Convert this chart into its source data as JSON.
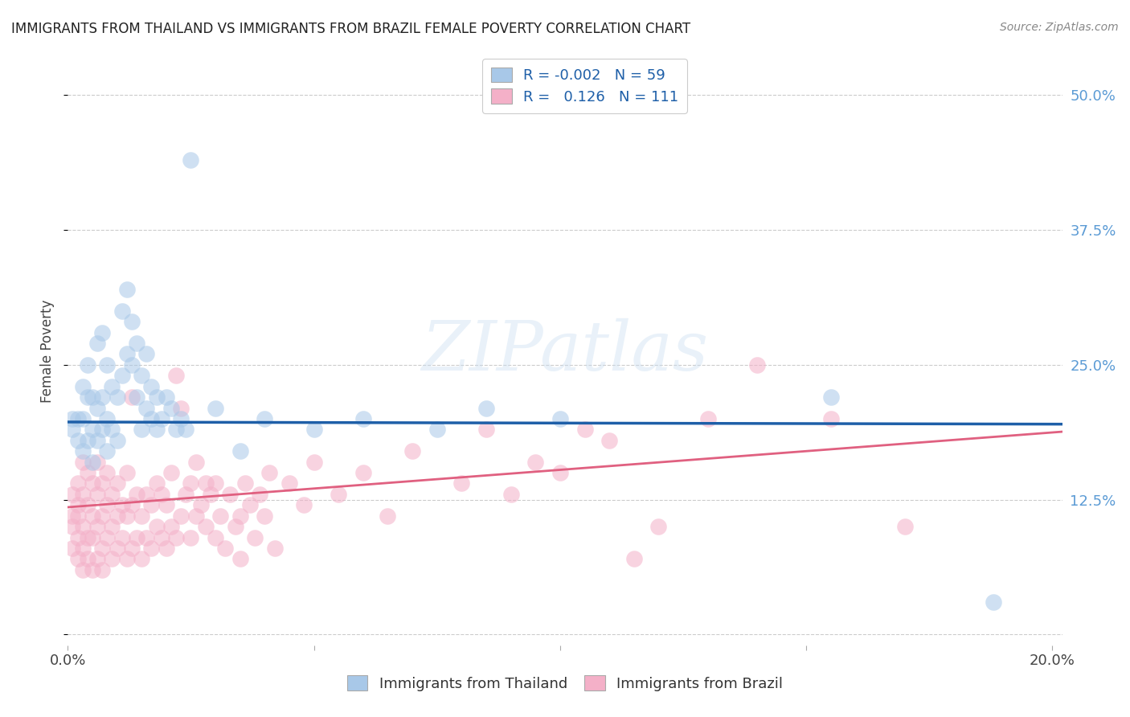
{
  "title": "IMMIGRANTS FROM THAILAND VS IMMIGRANTS FROM BRAZIL FEMALE POVERTY CORRELATION CHART",
  "source": "Source: ZipAtlas.com",
  "ylabel": "Female Poverty",
  "yticks": [
    0.0,
    0.125,
    0.25,
    0.375,
    0.5
  ],
  "ytick_labels": [
    "",
    "12.5%",
    "25.0%",
    "37.5%",
    "50.0%"
  ],
  "xlim": [
    0.0,
    0.202
  ],
  "ylim": [
    -0.01,
    0.535
  ],
  "thailand_color": "#a8c8e8",
  "brazil_color": "#f4b0c8",
  "thailand_line_color": "#1e5fa8",
  "brazil_line_color": "#e06080",
  "watermark": "ZIPatlas",
  "background_color": "#ffffff",
  "grid_color": "#cccccc",
  "title_color": "#222222",
  "right_tick_color": "#5b9bd5",
  "th_line_y0": 0.197,
  "th_line_y1": 0.195,
  "br_line_y0": 0.118,
  "br_line_y1": 0.188,
  "thailand_scatter": [
    [
      0.001,
      0.19
    ],
    [
      0.001,
      0.2
    ],
    [
      0.002,
      0.18
    ],
    [
      0.002,
      0.2
    ],
    [
      0.003,
      0.17
    ],
    [
      0.003,
      0.2
    ],
    [
      0.003,
      0.23
    ],
    [
      0.004,
      0.18
    ],
    [
      0.004,
      0.22
    ],
    [
      0.004,
      0.25
    ],
    [
      0.005,
      0.16
    ],
    [
      0.005,
      0.19
    ],
    [
      0.005,
      0.22
    ],
    [
      0.006,
      0.18
    ],
    [
      0.006,
      0.21
    ],
    [
      0.006,
      0.27
    ],
    [
      0.007,
      0.19
    ],
    [
      0.007,
      0.22
    ],
    [
      0.007,
      0.28
    ],
    [
      0.008,
      0.17
    ],
    [
      0.008,
      0.2
    ],
    [
      0.008,
      0.25
    ],
    [
      0.009,
      0.19
    ],
    [
      0.009,
      0.23
    ],
    [
      0.01,
      0.18
    ],
    [
      0.01,
      0.22
    ],
    [
      0.011,
      0.24
    ],
    [
      0.011,
      0.3
    ],
    [
      0.012,
      0.26
    ],
    [
      0.012,
      0.32
    ],
    [
      0.013,
      0.25
    ],
    [
      0.013,
      0.29
    ],
    [
      0.014,
      0.22
    ],
    [
      0.014,
      0.27
    ],
    [
      0.015,
      0.19
    ],
    [
      0.015,
      0.24
    ],
    [
      0.016,
      0.21
    ],
    [
      0.016,
      0.26
    ],
    [
      0.017,
      0.2
    ],
    [
      0.017,
      0.23
    ],
    [
      0.018,
      0.19
    ],
    [
      0.018,
      0.22
    ],
    [
      0.019,
      0.2
    ],
    [
      0.02,
      0.22
    ],
    [
      0.021,
      0.21
    ],
    [
      0.022,
      0.19
    ],
    [
      0.023,
      0.2
    ],
    [
      0.024,
      0.19
    ],
    [
      0.025,
      0.44
    ],
    [
      0.03,
      0.21
    ],
    [
      0.035,
      0.17
    ],
    [
      0.04,
      0.2
    ],
    [
      0.05,
      0.19
    ],
    [
      0.06,
      0.2
    ],
    [
      0.075,
      0.19
    ],
    [
      0.085,
      0.21
    ],
    [
      0.1,
      0.2
    ],
    [
      0.155,
      0.22
    ],
    [
      0.188,
      0.03
    ]
  ],
  "brazil_scatter": [
    [
      0.001,
      0.11
    ],
    [
      0.001,
      0.13
    ],
    [
      0.001,
      0.08
    ],
    [
      0.001,
      0.1
    ],
    [
      0.002,
      0.09
    ],
    [
      0.002,
      0.12
    ],
    [
      0.002,
      0.07
    ],
    [
      0.002,
      0.11
    ],
    [
      0.002,
      0.14
    ],
    [
      0.003,
      0.08
    ],
    [
      0.003,
      0.1
    ],
    [
      0.003,
      0.13
    ],
    [
      0.003,
      0.06
    ],
    [
      0.003,
      0.16
    ],
    [
      0.004,
      0.07
    ],
    [
      0.004,
      0.09
    ],
    [
      0.004,
      0.12
    ],
    [
      0.004,
      0.15
    ],
    [
      0.005,
      0.06
    ],
    [
      0.005,
      0.09
    ],
    [
      0.005,
      0.11
    ],
    [
      0.005,
      0.14
    ],
    [
      0.006,
      0.07
    ],
    [
      0.006,
      0.1
    ],
    [
      0.006,
      0.13
    ],
    [
      0.006,
      0.16
    ],
    [
      0.007,
      0.08
    ],
    [
      0.007,
      0.11
    ],
    [
      0.007,
      0.14
    ],
    [
      0.007,
      0.06
    ],
    [
      0.008,
      0.09
    ],
    [
      0.008,
      0.12
    ],
    [
      0.008,
      0.15
    ],
    [
      0.009,
      0.07
    ],
    [
      0.009,
      0.1
    ],
    [
      0.009,
      0.13
    ],
    [
      0.01,
      0.08
    ],
    [
      0.01,
      0.11
    ],
    [
      0.01,
      0.14
    ],
    [
      0.011,
      0.09
    ],
    [
      0.011,
      0.12
    ],
    [
      0.012,
      0.07
    ],
    [
      0.012,
      0.11
    ],
    [
      0.012,
      0.15
    ],
    [
      0.013,
      0.08
    ],
    [
      0.013,
      0.12
    ],
    [
      0.013,
      0.22
    ],
    [
      0.014,
      0.09
    ],
    [
      0.014,
      0.13
    ],
    [
      0.015,
      0.07
    ],
    [
      0.015,
      0.11
    ],
    [
      0.016,
      0.09
    ],
    [
      0.016,
      0.13
    ],
    [
      0.017,
      0.08
    ],
    [
      0.017,
      0.12
    ],
    [
      0.018,
      0.1
    ],
    [
      0.018,
      0.14
    ],
    [
      0.019,
      0.09
    ],
    [
      0.019,
      0.13
    ],
    [
      0.02,
      0.08
    ],
    [
      0.02,
      0.12
    ],
    [
      0.021,
      0.1
    ],
    [
      0.021,
      0.15
    ],
    [
      0.022,
      0.09
    ],
    [
      0.022,
      0.24
    ],
    [
      0.023,
      0.11
    ],
    [
      0.023,
      0.21
    ],
    [
      0.024,
      0.13
    ],
    [
      0.025,
      0.09
    ],
    [
      0.025,
      0.14
    ],
    [
      0.026,
      0.11
    ],
    [
      0.026,
      0.16
    ],
    [
      0.027,
      0.12
    ],
    [
      0.028,
      0.1
    ],
    [
      0.028,
      0.14
    ],
    [
      0.029,
      0.13
    ],
    [
      0.03,
      0.09
    ],
    [
      0.03,
      0.14
    ],
    [
      0.031,
      0.11
    ],
    [
      0.032,
      0.08
    ],
    [
      0.033,
      0.13
    ],
    [
      0.034,
      0.1
    ],
    [
      0.035,
      0.07
    ],
    [
      0.035,
      0.11
    ],
    [
      0.036,
      0.14
    ],
    [
      0.037,
      0.12
    ],
    [
      0.038,
      0.09
    ],
    [
      0.039,
      0.13
    ],
    [
      0.04,
      0.11
    ],
    [
      0.041,
      0.15
    ],
    [
      0.042,
      0.08
    ],
    [
      0.045,
      0.14
    ],
    [
      0.048,
      0.12
    ],
    [
      0.05,
      0.16
    ],
    [
      0.055,
      0.13
    ],
    [
      0.06,
      0.15
    ],
    [
      0.065,
      0.11
    ],
    [
      0.07,
      0.17
    ],
    [
      0.08,
      0.14
    ],
    [
      0.085,
      0.19
    ],
    [
      0.09,
      0.13
    ],
    [
      0.095,
      0.16
    ],
    [
      0.1,
      0.15
    ],
    [
      0.105,
      0.19
    ],
    [
      0.11,
      0.18
    ],
    [
      0.115,
      0.07
    ],
    [
      0.12,
      0.1
    ],
    [
      0.13,
      0.2
    ],
    [
      0.14,
      0.25
    ],
    [
      0.155,
      0.2
    ],
    [
      0.17,
      0.1
    ]
  ]
}
